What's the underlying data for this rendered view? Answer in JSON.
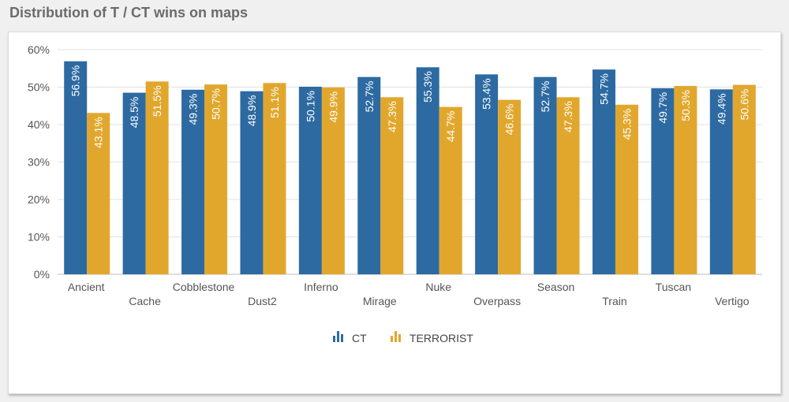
{
  "page": {
    "title": "Distribution of T / CT wins on maps"
  },
  "colors": {
    "ct": "#2d6aa2",
    "terrorist": "#e1a72d",
    "grid": "#e2e2e2",
    "axis": "#bdbdbd"
  },
  "chart_data": {
    "type": "bar",
    "title": "",
    "xlabel": "",
    "ylabel": "",
    "ylim": [
      0,
      60
    ],
    "yticks": [
      "0%",
      "10%",
      "20%",
      "30%",
      "40%",
      "50%",
      "60%"
    ],
    "grid": true,
    "legend_position": "bottom-center",
    "categories": [
      "Ancient",
      "Cache",
      "Cobblestone",
      "Dust2",
      "Inferno",
      "Mirage",
      "Nuke",
      "Overpass",
      "Season",
      "Train",
      "Tuscan",
      "Vertigo"
    ],
    "series": [
      {
        "name": "CT",
        "color": "#2d6aa2",
        "icon": "bar-chart-icon",
        "values": [
          56.9,
          48.5,
          49.3,
          48.9,
          50.1,
          52.7,
          55.3,
          53.4,
          52.7,
          54.7,
          49.7,
          49.4
        ],
        "labels": [
          "56.9%",
          "48.5%",
          "49.3%",
          "48.9%",
          "50.1%",
          "52.7%",
          "55.3%",
          "53.4%",
          "52.7%",
          "54.7%",
          "49.7%",
          "49.4%"
        ]
      },
      {
        "name": "TERRORIST",
        "color": "#e1a72d",
        "icon": "bar-chart-icon",
        "values": [
          43.1,
          51.5,
          50.7,
          51.1,
          49.9,
          47.3,
          44.7,
          46.6,
          47.3,
          45.3,
          50.3,
          50.6
        ],
        "labels": [
          "43.1%",
          "51.5%",
          "50.7%",
          "51.1%",
          "49.9%",
          "47.3%",
          "44.7%",
          "46.6%",
          "47.3%",
          "45.3%",
          "50.3%",
          "50.6%"
        ]
      }
    ]
  }
}
